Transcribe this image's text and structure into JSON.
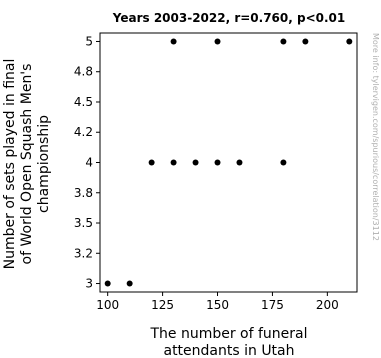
{
  "chart_data": {
    "type": "scatter",
    "title": "Years 2003-2022, r=0.760, p<0.01",
    "xlabel": [
      "The number of funeral",
      "attendants in Utah"
    ],
    "ylabel": [
      "Number of sets played in final",
      "of World Open Squash Men's",
      "championship"
    ],
    "watermark": "More info: tylervigen.com/spurious/correlation/3112",
    "xlim": [
      96.5,
      213.5
    ],
    "ylim": [
      2.93,
      5.07
    ],
    "xticks": [
      100,
      125,
      150,
      175,
      200
    ],
    "yticks": [
      3,
      3.25,
      3.5,
      3.75,
      4,
      4.25,
      4.5,
      4.75,
      5
    ],
    "ytick_labels": [
      "3",
      "3.2",
      "3.5",
      "3.8",
      "4",
      "4.2",
      "4.5",
      "4.8",
      "5"
    ],
    "points": [
      {
        "x": 100,
        "y": 3
      },
      {
        "x": 110,
        "y": 3
      },
      {
        "x": 120,
        "y": 4
      },
      {
        "x": 130,
        "y": 4
      },
      {
        "x": 140,
        "y": 4
      },
      {
        "x": 150,
        "y": 4
      },
      {
        "x": 160,
        "y": 4
      },
      {
        "x": 180,
        "y": 4
      },
      {
        "x": 130,
        "y": 5
      },
      {
        "x": 150,
        "y": 5
      },
      {
        "x": 180,
        "y": 5
      },
      {
        "x": 190,
        "y": 5
      },
      {
        "x": 210,
        "y": 5
      }
    ],
    "marker_color": "#000000"
  }
}
